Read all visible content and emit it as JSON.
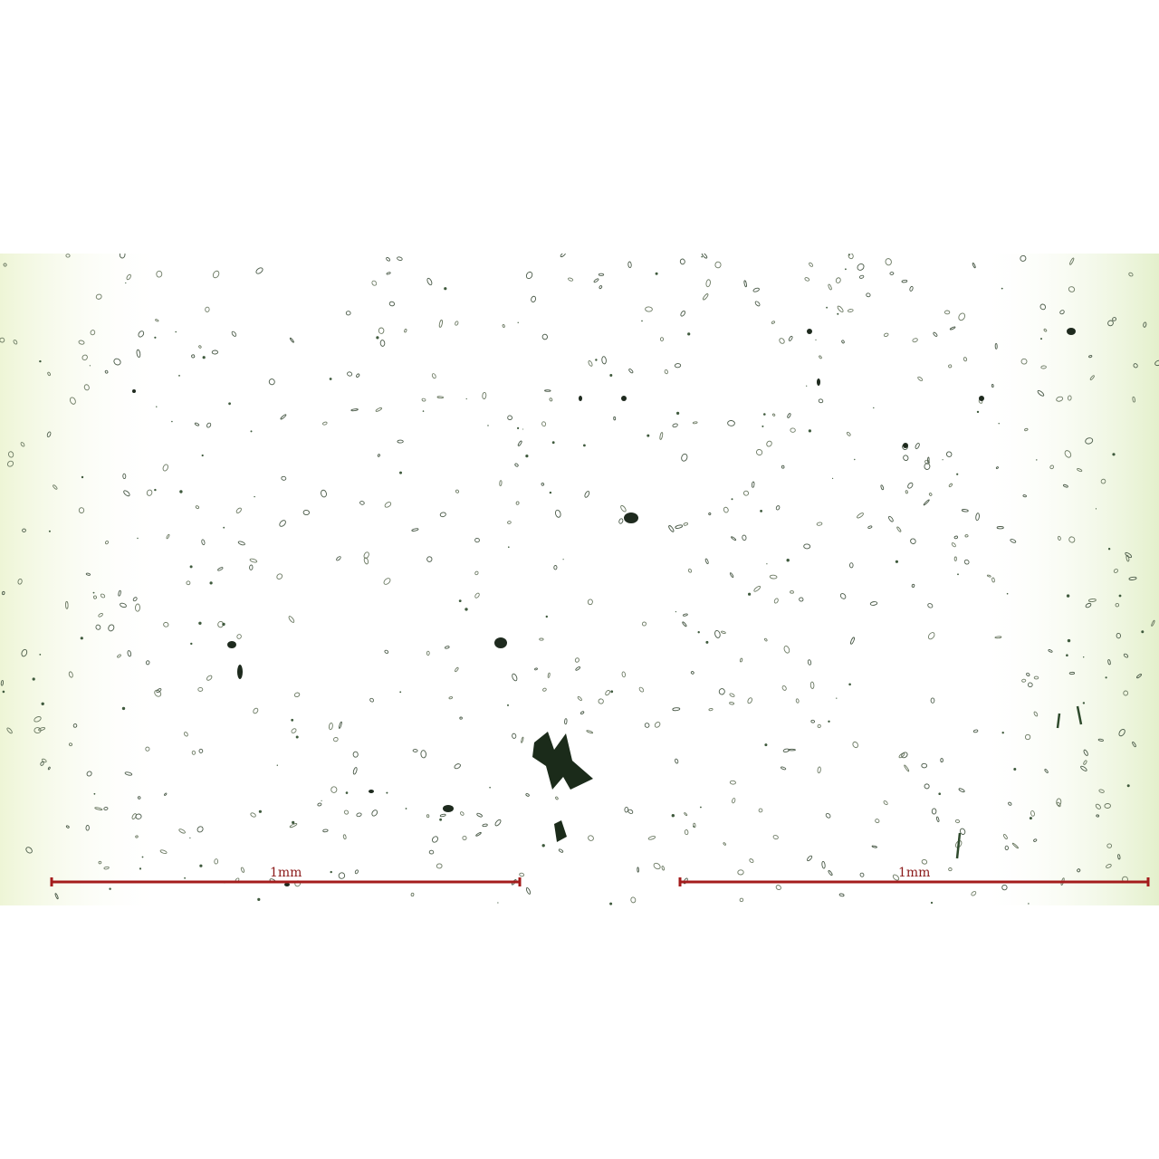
{
  "image": {
    "description_free": true,
    "accent_color": "#a41c1c"
  },
  "scale_bars": [
    {
      "label": "1mm"
    },
    {
      "label": "1mm"
    }
  ]
}
